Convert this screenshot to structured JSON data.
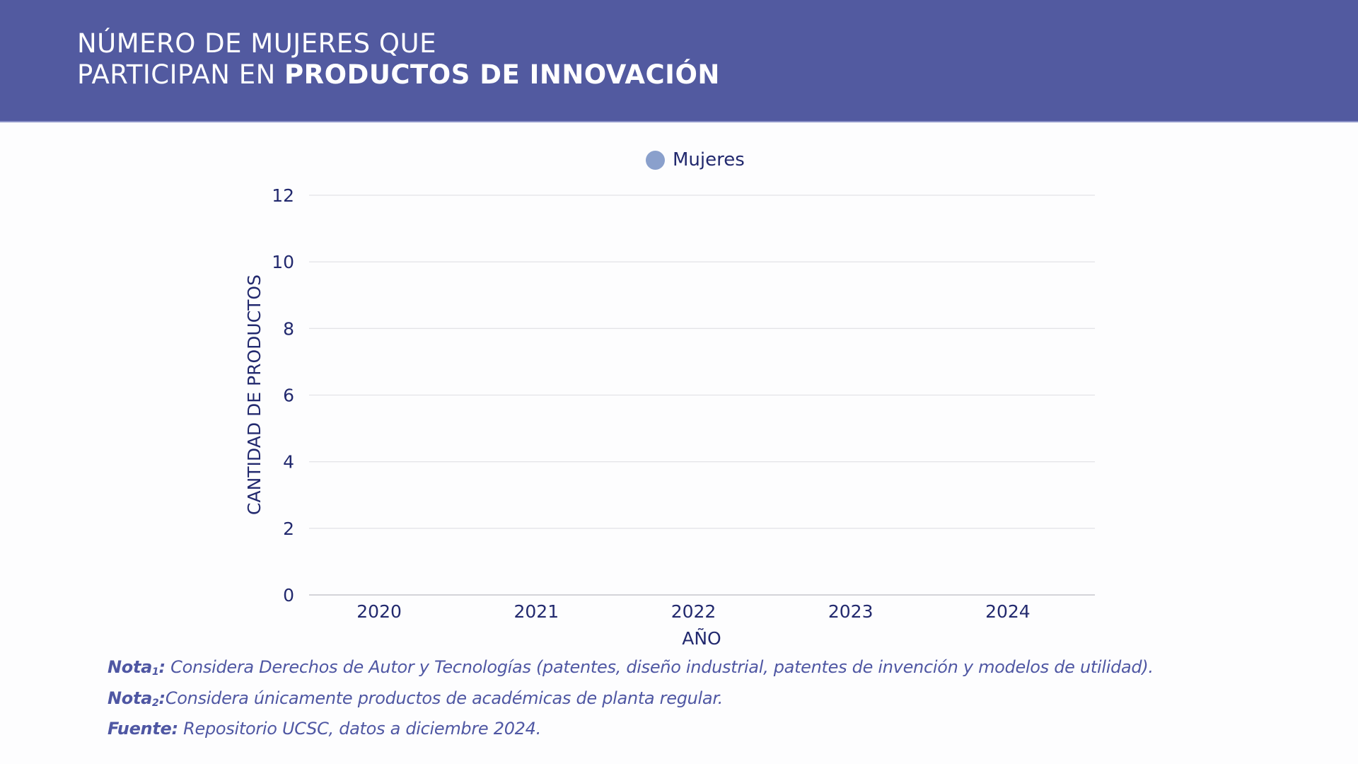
{
  "header": {
    "title_line1": "NÚMERO DE MUJERES QUE",
    "title_line2_regular": "PARTICIPAN EN ",
    "title_line2_bold": "PRODUCTOS DE INNOVACIÓN",
    "background_color": "#525aa0"
  },
  "chart_data": {
    "type": "bar",
    "title": "NÚMERO DE MUJERES QUE PARTICIPAN EN PRODUCTOS DE INNOVACIÓN",
    "categories": [
      "2020",
      "2021",
      "2022",
      "2023",
      "2024"
    ],
    "series": [
      {
        "name": "Mujeres",
        "color": "#8aa0cc",
        "values": [
          0,
          0,
          0,
          0,
          0
        ]
      }
    ],
    "xlabel": "AÑO",
    "ylabel": "CANTIDAD DE PRODUCTOS",
    "ylim": [
      0,
      12
    ],
    "yticks": [
      0,
      2,
      4,
      6,
      8,
      10,
      12
    ],
    "grid": true,
    "legend_position": "top-center"
  },
  "notes": [
    {
      "label": "Nota",
      "sub": "1",
      "colon": ":",
      "text": " Considera Derechos de Autor y Tecnologías (patentes, diseño industrial, patentes de invención y modelos de utilidad)."
    },
    {
      "label": "Nota",
      "sub": "2",
      "colon": ":",
      "text": "Considera únicamente productos de académicas de planta regular."
    },
    {
      "label": "Fuente:",
      "sub": "",
      "colon": "",
      "text": " Repositorio UCSC, datos a diciembre 2024."
    }
  ]
}
